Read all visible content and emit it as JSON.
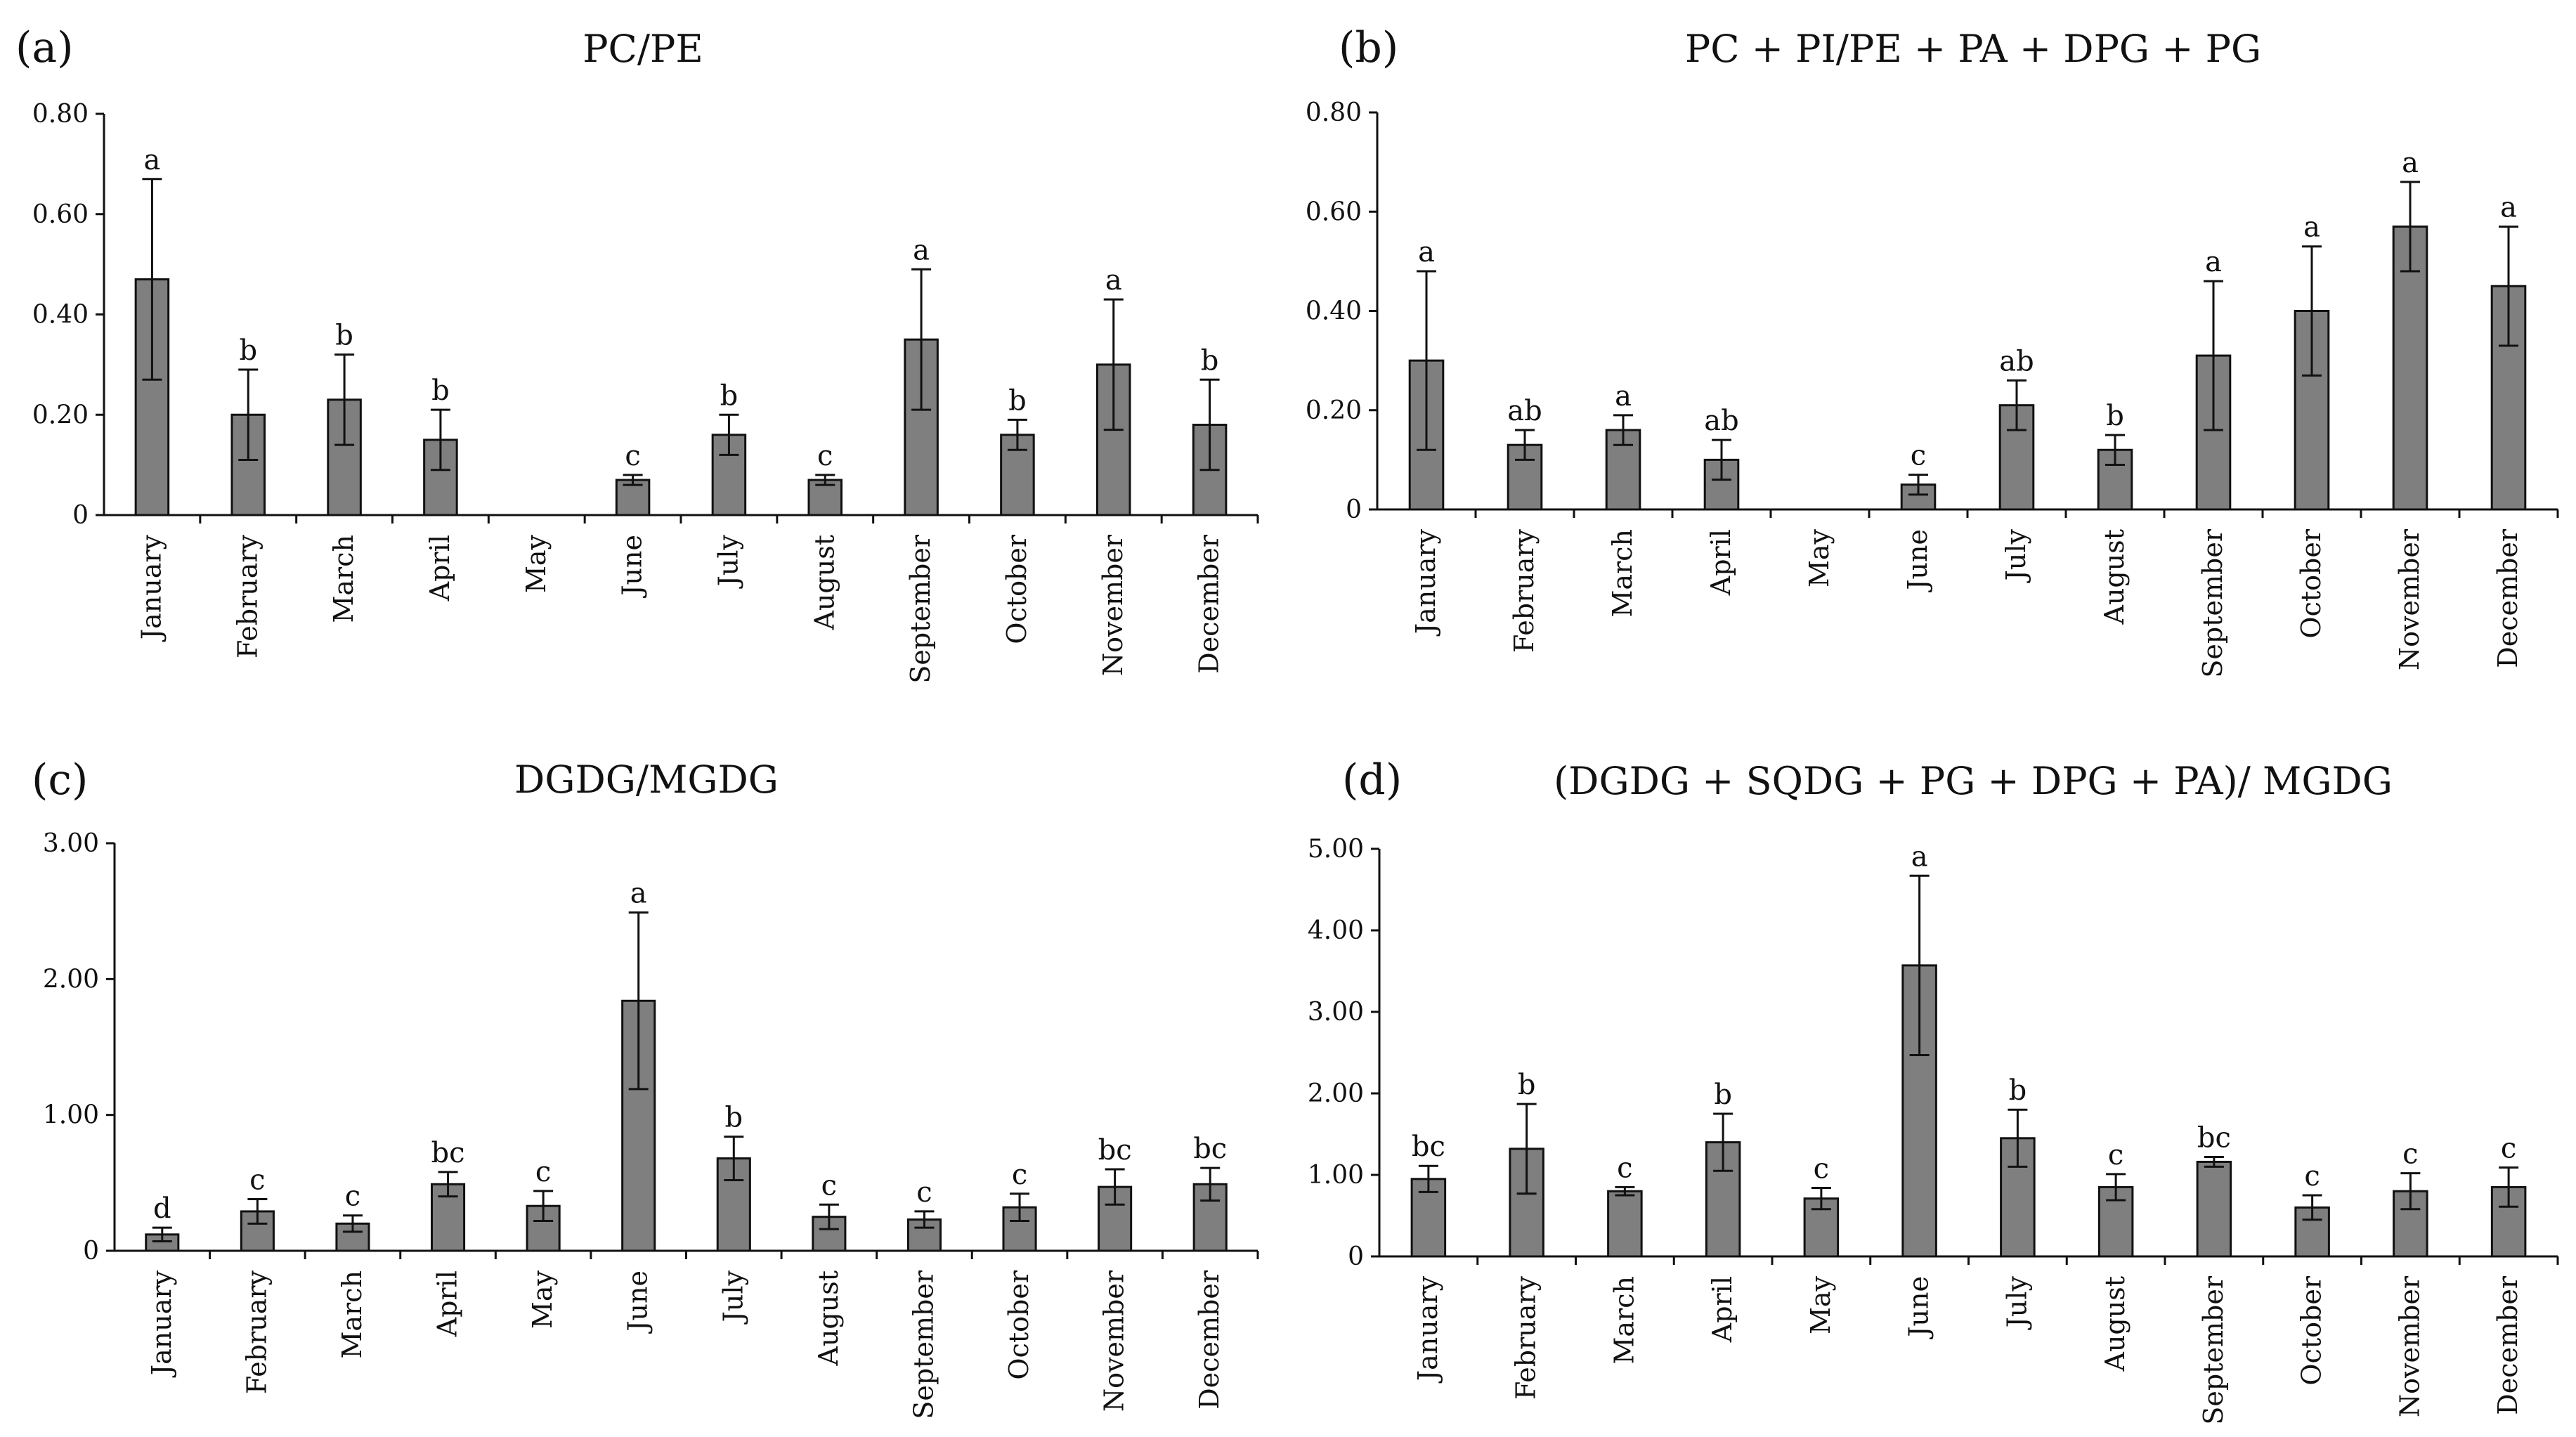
{
  "figure": {
    "categories": [
      "January",
      "February",
      "March",
      "April",
      "May",
      "June",
      "July",
      "August",
      "September",
      "October",
      "November",
      "December"
    ]
  },
  "chart_data": [
    {
      "panel": "(a)",
      "type": "bar",
      "title": "PC/PE",
      "xlabel": "",
      "ylabel": "",
      "ylim": [
        0,
        0.8
      ],
      "yticks": [
        0,
        0.2,
        0.4,
        0.6,
        0.8
      ],
      "ytick_labels": [
        "0",
        "0.20",
        "0.40",
        "0.60",
        "0.80"
      ],
      "categories": [
        "January",
        "February",
        "March",
        "April",
        "May",
        "June",
        "July",
        "August",
        "September",
        "October",
        "November",
        "December"
      ],
      "values": [
        0.47,
        0.2,
        0.23,
        0.15,
        null,
        0.07,
        0.16,
        0.07,
        0.35,
        0.16,
        0.3,
        0.18
      ],
      "errors": [
        0.2,
        0.09,
        0.09,
        0.06,
        null,
        0.01,
        0.04,
        0.01,
        0.14,
        0.03,
        0.13,
        0.09
      ],
      "significance": [
        "a",
        "b",
        "b",
        "b",
        "",
        "c",
        "b",
        "c",
        "a",
        "b",
        "a",
        "b"
      ]
    },
    {
      "panel": "(b)",
      "type": "bar",
      "title": "PC + PI/PE + PA + DPG + PG",
      "xlabel": "",
      "ylabel": "",
      "ylim": [
        0,
        0.8
      ],
      "yticks": [
        0,
        0.2,
        0.4,
        0.6,
        0.8
      ],
      "ytick_labels": [
        "0",
        "0.20",
        "0.40",
        "0.60",
        "0.80"
      ],
      "categories": [
        "January",
        "February",
        "March",
        "April",
        "May",
        "June",
        "July",
        "August",
        "September",
        "October",
        "November",
        "December"
      ],
      "values": [
        0.3,
        0.13,
        0.16,
        0.1,
        null,
        0.05,
        0.21,
        0.12,
        0.31,
        0.4,
        0.57,
        0.45
      ],
      "errors": [
        0.18,
        0.03,
        0.03,
        0.04,
        null,
        0.02,
        0.05,
        0.03,
        0.15,
        0.13,
        0.09,
        0.12
      ],
      "significance": [
        "a",
        "ab",
        "a",
        "ab",
        "",
        "c",
        "ab",
        "b",
        "a",
        "a",
        "a",
        "a"
      ]
    },
    {
      "panel": "(c)",
      "type": "bar",
      "title": "DGDG/MGDG",
      "xlabel": "",
      "ylabel": "",
      "ylim": [
        0,
        3.0
      ],
      "yticks": [
        0,
        1,
        2,
        3
      ],
      "ytick_labels": [
        "0",
        "1.00",
        "2.00",
        "3.00"
      ],
      "categories": [
        "January",
        "February",
        "March",
        "April",
        "May",
        "June",
        "July",
        "August",
        "September",
        "October",
        "November",
        "December"
      ],
      "values": [
        0.12,
        0.29,
        0.2,
        0.49,
        0.33,
        1.84,
        0.68,
        0.25,
        0.23,
        0.32,
        0.47,
        0.49
      ],
      "errors": [
        0.05,
        0.09,
        0.06,
        0.09,
        0.11,
        0.65,
        0.16,
        0.09,
        0.06,
        0.1,
        0.13,
        0.12
      ],
      "significance": [
        "d",
        "c",
        "c",
        "bc",
        "c",
        "a",
        "b",
        "c",
        "c",
        "c",
        "bc",
        "bc"
      ]
    },
    {
      "panel": "(d)",
      "type": "bar",
      "title": "(DGDG + SQDG + PG + DPG + PA)/ MGDG",
      "xlabel": "",
      "ylabel": "",
      "ylim": [
        0,
        5.0
      ],
      "yticks": [
        0,
        1,
        2,
        3,
        4,
        5
      ],
      "ytick_labels": [
        "0",
        "1.00",
        "2.00",
        "3.00",
        "4.00",
        "5.00"
      ],
      "categories": [
        "January",
        "February",
        "March",
        "April",
        "May",
        "June",
        "July",
        "August",
        "September",
        "October",
        "November",
        "December"
      ],
      "values": [
        0.95,
        1.32,
        0.8,
        1.4,
        0.71,
        3.57,
        1.45,
        0.85,
        1.16,
        0.6,
        0.8,
        0.85
      ],
      "errors": [
        0.16,
        0.55,
        0.05,
        0.35,
        0.13,
        1.1,
        0.35,
        0.16,
        0.06,
        0.15,
        0.22,
        0.24
      ],
      "significance": [
        "bc",
        "b",
        "c",
        "b",
        "c",
        "a",
        "b",
        "c",
        "bc",
        "c",
        "c",
        "c"
      ]
    }
  ]
}
